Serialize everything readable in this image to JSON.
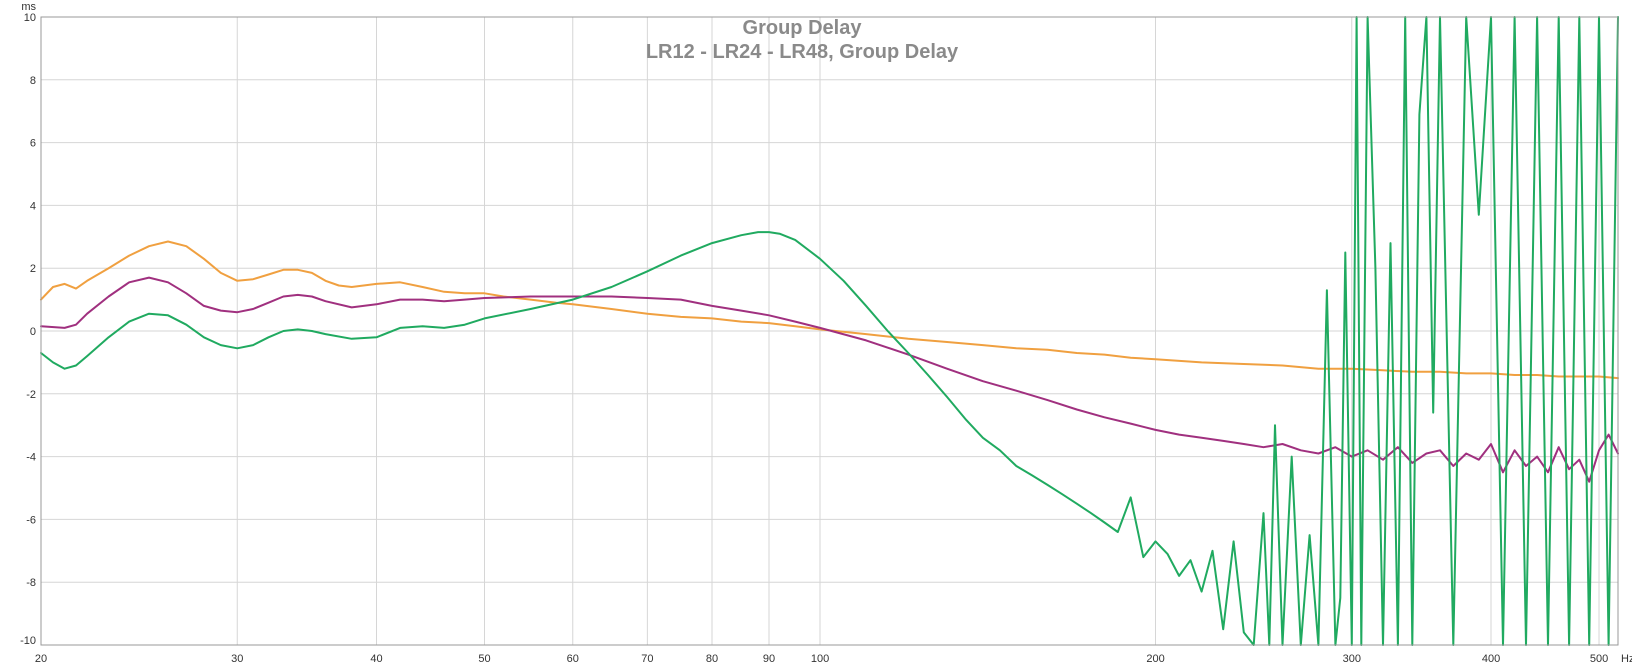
{
  "chart_data": {
    "type": "line",
    "title": "Group Delay",
    "subtitle": "LR12 - LR24 - LR48, Group Delay",
    "ylabel": "ms",
    "xlabel": "Hz",
    "x_scale": "log",
    "xlim": [
      20,
      520
    ],
    "ylim": [
      -10,
      10
    ],
    "grid": true,
    "legend": "none",
    "x_ticks": [
      20,
      30,
      40,
      50,
      60,
      70,
      80,
      90,
      100,
      200,
      300,
      400,
      500
    ],
    "x_tick_labels": [
      "20",
      "30",
      "40",
      "50",
      "60",
      "70",
      "80",
      "90",
      "100",
      "200",
      "300",
      "400",
      "500"
    ],
    "y_ticks": [
      -10,
      -8,
      -6,
      -4,
      -2,
      0,
      2,
      4,
      6,
      8,
      10
    ],
    "y_tick_labels": [
      "-10",
      "-8",
      "-6",
      "-4",
      "-2",
      "0",
      "2",
      "4",
      "6",
      "8",
      "10"
    ],
    "series": [
      {
        "color": "#f0a040",
        "x": [
          20,
          20.5,
          21,
          21.5,
          22,
          23,
          24,
          25,
          26,
          27,
          28,
          29,
          30,
          31,
          32,
          33,
          34,
          35,
          36,
          37,
          38,
          40,
          42,
          44,
          46,
          48,
          50,
          52,
          55,
          58,
          60,
          65,
          70,
          75,
          80,
          85,
          90,
          95,
          100,
          110,
          120,
          130,
          140,
          150,
          160,
          170,
          180,
          190,
          200,
          220,
          240,
          260,
          280,
          300,
          320,
          340,
          360,
          380,
          400,
          420,
          440,
          460,
          480,
          500,
          520
        ],
        "y": [
          1.0,
          1.4,
          1.5,
          1.35,
          1.6,
          2.0,
          2.4,
          2.7,
          2.85,
          2.7,
          2.3,
          1.85,
          1.6,
          1.65,
          1.8,
          1.95,
          1.95,
          1.85,
          1.6,
          1.45,
          1.4,
          1.5,
          1.55,
          1.4,
          1.25,
          1.2,
          1.2,
          1.1,
          1.0,
          0.9,
          0.85,
          0.7,
          0.55,
          0.45,
          0.4,
          0.3,
          0.25,
          0.15,
          0.05,
          -0.1,
          -0.25,
          -0.35,
          -0.45,
          -0.55,
          -0.6,
          -0.7,
          -0.75,
          -0.85,
          -0.9,
          -1.0,
          -1.05,
          -1.1,
          -1.2,
          -1.2,
          -1.25,
          -1.3,
          -1.3,
          -1.35,
          -1.35,
          -1.4,
          -1.4,
          -1.45,
          -1.45,
          -1.45,
          -1.5
        ]
      },
      {
        "color": "#a0307f",
        "x": [
          20,
          21,
          21.5,
          22,
          23,
          24,
          25,
          26,
          27,
          28,
          29,
          30,
          31,
          32,
          33,
          34,
          35,
          36,
          38,
          40,
          42,
          44,
          46,
          48,
          50,
          55,
          60,
          65,
          70,
          75,
          80,
          85,
          90,
          95,
          100,
          110,
          120,
          130,
          140,
          150,
          160,
          170,
          180,
          190,
          200,
          210,
          220,
          230,
          240,
          250,
          260,
          270,
          280,
          290,
          300,
          310,
          320,
          330,
          340,
          350,
          360,
          370,
          380,
          390,
          400,
          410,
          420,
          430,
          440,
          450,
          460,
          470,
          480,
          490,
          500,
          510,
          520
        ],
        "y": [
          0.15,
          0.1,
          0.2,
          0.55,
          1.1,
          1.55,
          1.7,
          1.55,
          1.2,
          0.8,
          0.65,
          0.6,
          0.7,
          0.9,
          1.1,
          1.15,
          1.1,
          0.95,
          0.75,
          0.85,
          1.0,
          1.0,
          0.95,
          1.0,
          1.05,
          1.1,
          1.1,
          1.1,
          1.05,
          1.0,
          0.8,
          0.65,
          0.5,
          0.3,
          0.1,
          -0.3,
          -0.75,
          -1.2,
          -1.6,
          -1.9,
          -2.2,
          -2.5,
          -2.75,
          -2.95,
          -3.15,
          -3.3,
          -3.4,
          -3.5,
          -3.6,
          -3.7,
          -3.6,
          -3.8,
          -3.9,
          -3.7,
          -4.0,
          -3.8,
          -4.1,
          -3.7,
          -4.2,
          -3.9,
          -3.8,
          -4.3,
          -3.9,
          -4.1,
          -3.6,
          -4.5,
          -3.8,
          -4.3,
          -4.0,
          -4.5,
          -3.7,
          -4.4,
          -4.1,
          -4.8,
          -3.8,
          -3.3,
          -3.9
        ]
      },
      {
        "color": "#20aa60",
        "x": [
          20,
          20.5,
          21,
          21.5,
          22,
          23,
          24,
          25,
          26,
          27,
          28,
          29,
          30,
          31,
          32,
          33,
          34,
          35,
          36,
          38,
          40,
          42,
          44,
          46,
          48,
          50,
          55,
          60,
          65,
          70,
          75,
          80,
          85,
          88,
          90,
          92,
          95,
          100,
          105,
          110,
          115,
          120,
          125,
          130,
          135,
          140,
          145,
          150,
          155,
          160,
          165,
          170,
          175,
          180,
          185,
          190,
          195,
          200,
          205,
          210,
          215,
          220,
          225,
          230,
          235,
          240,
          245,
          250,
          253,
          256,
          260,
          265,
          270,
          275,
          280,
          285,
          290,
          293,
          296,
          300,
          303,
          306,
          310,
          315,
          320,
          325,
          330,
          335,
          340,
          345,
          350,
          355,
          360,
          370,
          380,
          390,
          400,
          410,
          420,
          430,
          440,
          450,
          460,
          470,
          480,
          490,
          500,
          510,
          520
        ],
        "y": [
          -0.7,
          -1.0,
          -1.2,
          -1.1,
          -0.8,
          -0.2,
          0.3,
          0.55,
          0.5,
          0.2,
          -0.2,
          -0.45,
          -0.55,
          -0.45,
          -0.2,
          0.0,
          0.05,
          0.0,
          -0.1,
          -0.25,
          -0.2,
          0.1,
          0.15,
          0.1,
          0.2,
          0.4,
          0.7,
          1.0,
          1.4,
          1.9,
          2.4,
          2.8,
          3.05,
          3.15,
          3.15,
          3.1,
          2.9,
          2.3,
          1.6,
          0.8,
          0.0,
          -0.7,
          -1.4,
          -2.1,
          -2.8,
          -3.4,
          -3.8,
          -4.3,
          -4.6,
          -4.9,
          -5.2,
          -5.5,
          -5.8,
          -6.1,
          -6.4,
          -5.3,
          -7.2,
          -6.7,
          -7.1,
          -7.8,
          -7.3,
          -8.3,
          -7.0,
          -9.5,
          -6.7,
          -9.6,
          -10,
          -5.8,
          -10,
          -3.0,
          -10,
          -4.0,
          -10,
          -6.5,
          -10,
          1.3,
          -10,
          -8.5,
          2.5,
          -10,
          10,
          -10,
          10,
          2.0,
          -10,
          2.8,
          -10,
          10,
          -10,
          6.9,
          10,
          -2.6,
          10,
          -10,
          10,
          3.7,
          10,
          -10,
          10,
          -10,
          10,
          -10,
          10,
          -10,
          10,
          -10,
          10,
          -10,
          10
        ]
      }
    ]
  }
}
